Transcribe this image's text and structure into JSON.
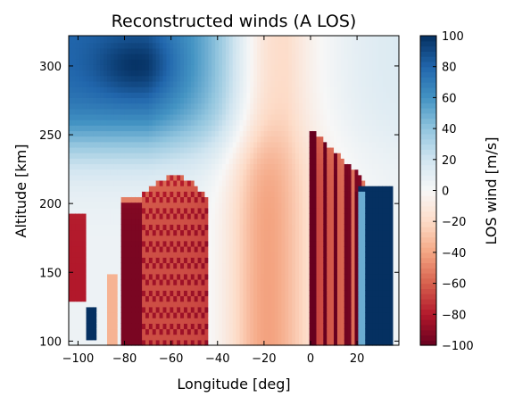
{
  "chart_data": {
    "type": "heatmap",
    "title": "Reconstructed winds (A LOS)",
    "xlabel": "Longitude [deg]",
    "ylabel": "Altitude [km]",
    "xlim": [
      -104,
      38
    ],
    "ylim": [
      97,
      322
    ],
    "xticks": [
      -100,
      -80,
      -60,
      -40,
      -20,
      0,
      20
    ],
    "yticks": [
      100,
      150,
      200,
      250,
      300
    ],
    "colorbar": {
      "label": "LOS wind [m/s]",
      "range": [
        -100,
        100
      ],
      "ticks": [
        -100,
        -80,
        -60,
        -40,
        -20,
        0,
        20,
        40,
        60,
        80,
        100
      ],
      "colormap": "RdBu",
      "colors": [
        "#67001f",
        "#b2182b",
        "#d6604d",
        "#f4a582",
        "#fddbc7",
        "#f7f7f7",
        "#d1e5f0",
        "#92c5de",
        "#4393c3",
        "#2166ac",
        "#053061"
      ]
    },
    "grid": false,
    "features": [
      {
        "region": "lon -97 to -93, alt 100-125",
        "wind": 100
      },
      {
        "region": "lon -104 to -97, alt 130-195",
        "wind": -80
      },
      {
        "region": "lon -82 to -74, alt 100-205",
        "wind": -95
      },
      {
        "region": "lon -70 to -44, alt 100-220",
        "wind": -85
      },
      {
        "region": "lon 0 to 24, alt 100-260",
        "wind": -75
      },
      {
        "region": "lon 22 to 35, alt 100-215",
        "wind": 100
      },
      {
        "region": "lon -80 to -60, alt 260-320",
        "wind": 75
      },
      {
        "region": "lon -30 to -10, alt 100-320",
        "wind": -30
      }
    ]
  }
}
